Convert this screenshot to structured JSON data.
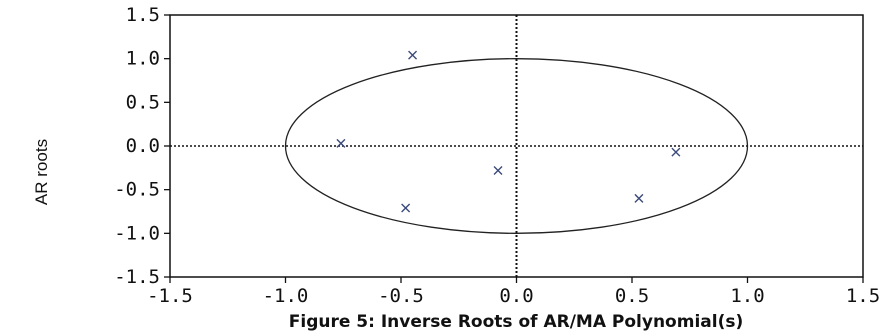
{
  "chart_data": {
    "type": "scatter",
    "title": "",
    "caption": "Figure 5: Inverse Roots of AR/MA Polynomial(s)",
    "xlabel": "",
    "ylabel": "AR roots",
    "xlim": [
      -1.5,
      1.5
    ],
    "ylim": [
      -1.5,
      1.5
    ],
    "xticks": [
      "-1.5",
      "-1.0",
      "-0.5",
      "0.0",
      "0.5",
      "1.0",
      "1.5"
    ],
    "yticks": [
      "1.5",
      "1.0",
      "0.5",
      "0.0",
      "-0.5",
      "-1.0",
      "-1.5"
    ],
    "unit_circle_radius": 1.0,
    "grid": false,
    "marker": "x",
    "series": [
      {
        "points": [
          {
            "x": -0.45,
            "y": 1.04
          },
          {
            "x": -0.76,
            "y": 0.03
          },
          {
            "x": -0.08,
            "y": -0.28
          },
          {
            "x": -0.48,
            "y": -0.71
          },
          {
            "x": 0.53,
            "y": -0.6
          },
          {
            "x": 0.69,
            "y": -0.07
          }
        ]
      }
    ]
  },
  "colors": {
    "marker": "#3b4a78",
    "axes": "#111111",
    "circle": "#222222"
  }
}
